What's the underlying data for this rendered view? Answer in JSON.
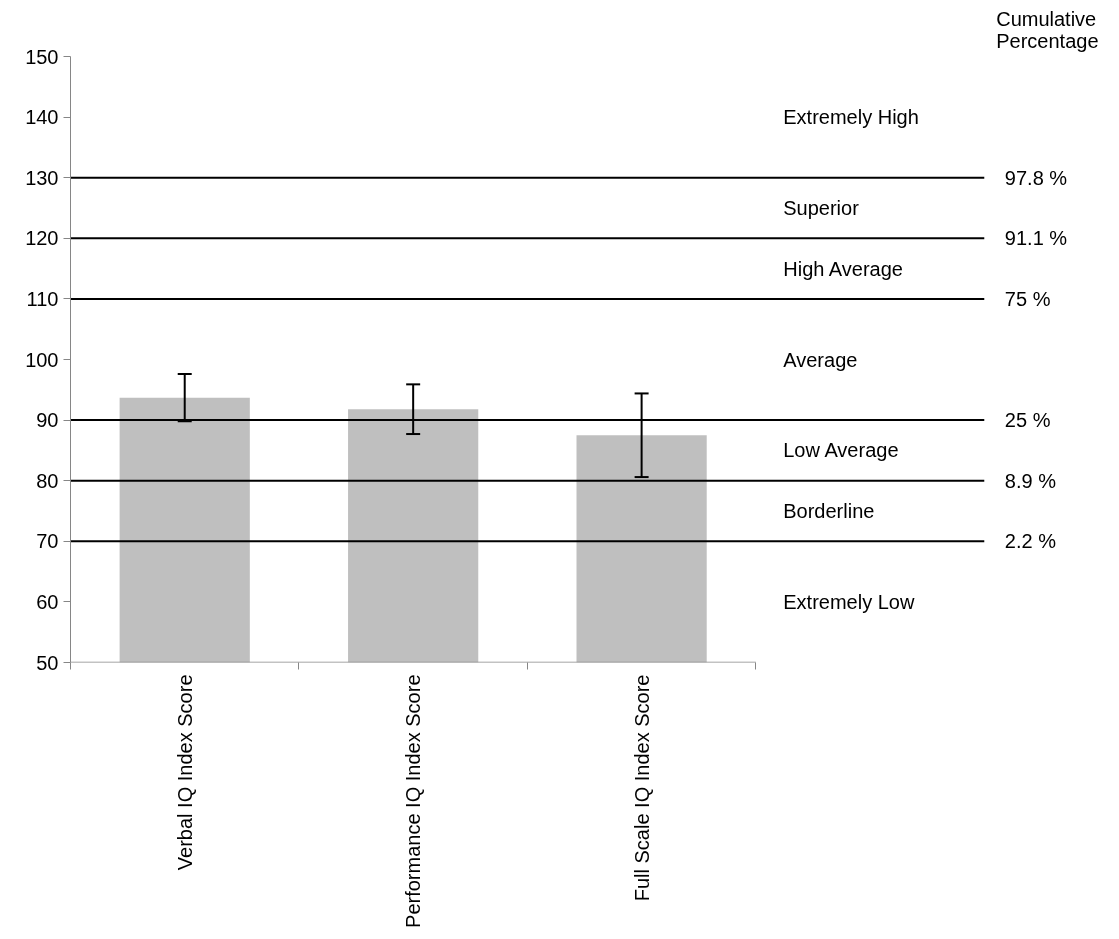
{
  "chart_data": {
    "type": "bar",
    "categories": [
      "Verbal IQ Index Score",
      "Performance IQ Index Score",
      "Full Scale IQ Index Score"
    ],
    "values": [
      93.7,
      91.8,
      87.5
    ],
    "errors": [
      3.9,
      4.1,
      6.9
    ],
    "color": "#bfbfbf",
    "ylim": [
      50,
      150
    ],
    "yticks": [
      50,
      60,
      70,
      80,
      90,
      100,
      110,
      120,
      130,
      140,
      150
    ],
    "grid": false,
    "ref_lines": [
      {
        "axis": "y",
        "value": 130,
        "color": "#000000"
      },
      {
        "axis": "y",
        "value": 120,
        "color": "#000000"
      },
      {
        "axis": "y",
        "value": 110,
        "color": "#000000"
      },
      {
        "axis": "y",
        "value": 90,
        "color": "#000000"
      },
      {
        "axis": "y",
        "value": 80,
        "color": "#000000"
      },
      {
        "axis": "y",
        "value": 70,
        "color": "#000000"
      }
    ],
    "annotations": [
      "Cumulative\nPercentage",
      "97.8 %",
      "91.1 %",
      "75 %",
      "25 %",
      "8.9 %",
      "2.2 %",
      "Extremely High",
      "Superior",
      "High Average",
      "Average",
      "Low Average",
      "Borderline",
      "Extremely Low"
    ]
  }
}
